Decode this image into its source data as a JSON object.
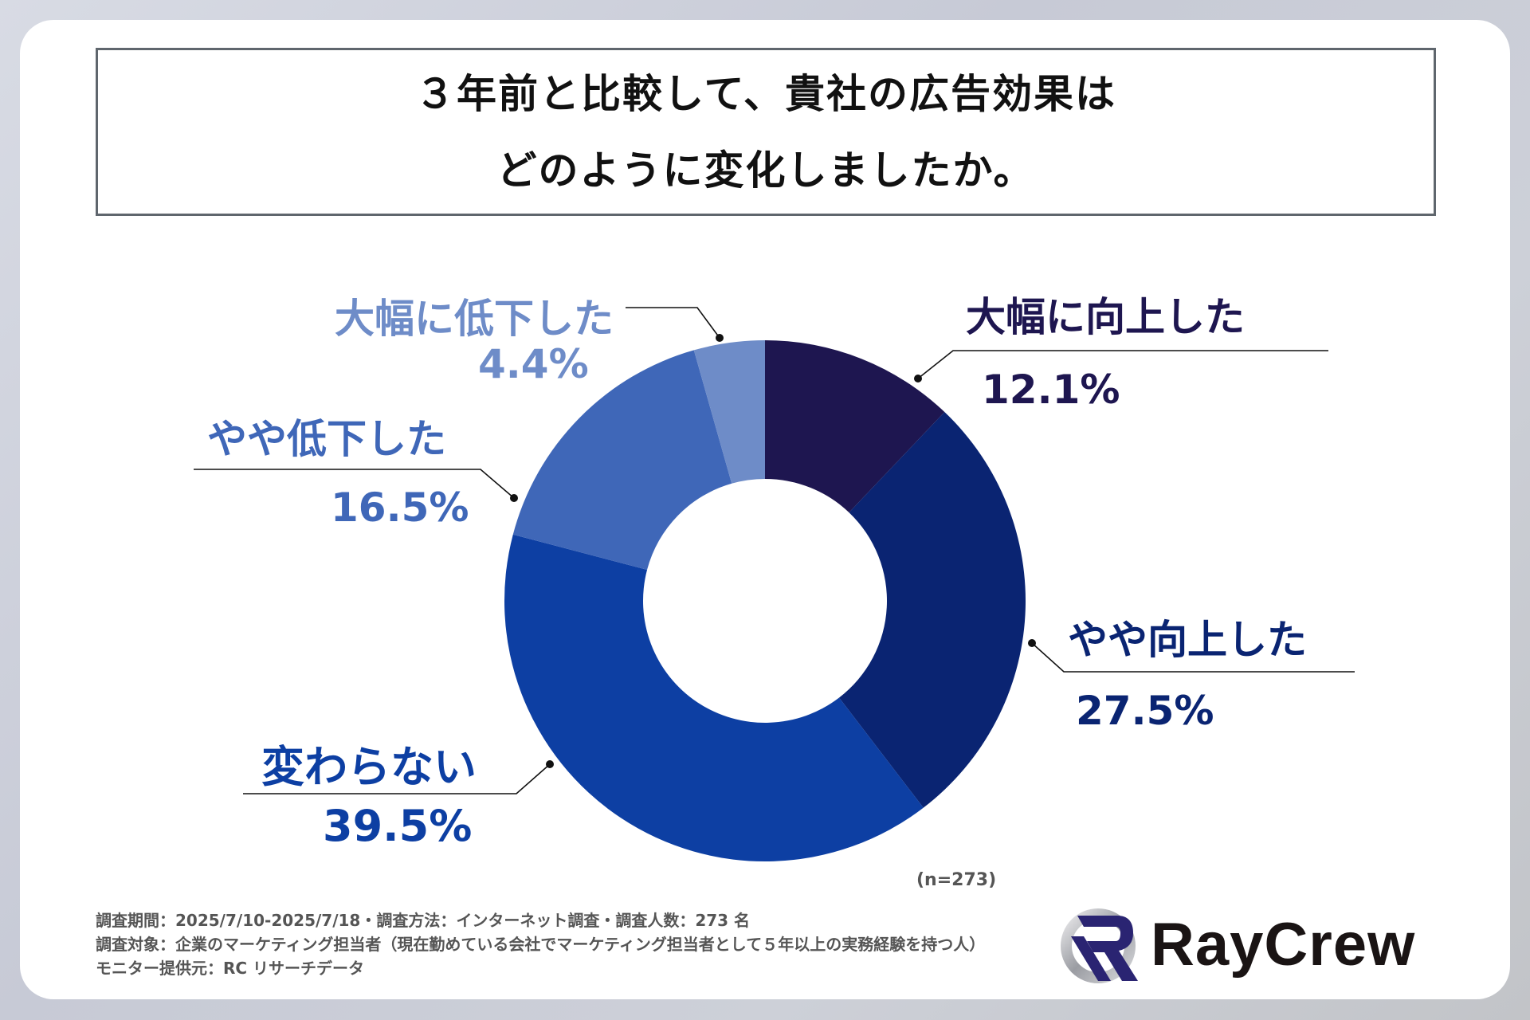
{
  "title": {
    "line1": "３年前と比較して、貴社の広告効果は",
    "line2": "どのように変化しましたか。"
  },
  "chart_data": {
    "type": "pie",
    "subtype": "donut",
    "title": "３年前と比較して、貴社の広告効果はどのように変化しましたか。",
    "categories": [
      "大幅に向上した",
      "やや向上した",
      "変わらない",
      "やや低下した",
      "大幅に低下した"
    ],
    "values": [
      12.1,
      27.5,
      39.5,
      16.5,
      4.4
    ],
    "value_labels": [
      "12.1%",
      "27.5%",
      "39.5%",
      "16.5%",
      "4.4%"
    ],
    "colors": [
      "#1e1650",
      "#0a2472",
      "#0d3fa3",
      "#3f67b8",
      "#6e8cc8"
    ],
    "label_colors": [
      "#1e1650",
      "#0a2472",
      "#0d3fa3",
      "#3f67b8",
      "#6e8cc8"
    ],
    "start_angle": "12 o'clock, clockwise",
    "sample_size": "(n=273)",
    "legend": "none (direct labels with leader lines)"
  },
  "labels": {
    "s0": {
      "cat": "大幅に向上した",
      "pct": "12.1%"
    },
    "s1": {
      "cat": "やや向上した",
      "pct": "27.5%"
    },
    "s2": {
      "cat": "変わらない",
      "pct": "39.5%"
    },
    "s3": {
      "cat": "やや低下した",
      "pct": "16.5%"
    },
    "s4": {
      "cat": "大幅に低下した",
      "pct": "4.4%"
    }
  },
  "note": "(n=273)",
  "footer": {
    "line1": "調査期間：2025/7/10-2025/7/18・調査方法：インターネット調査・調査人数：273 名",
    "line2": "調査対象：企業のマーケティング担当者（現在勤めている会社でマーケティング担当者として５年以上の実務経験を持つ人）",
    "line3": "モニター提供元：RC リサーチデータ"
  },
  "logo": {
    "text": "RayCrew",
    "icon": "raycrew-r-logo-icon"
  }
}
